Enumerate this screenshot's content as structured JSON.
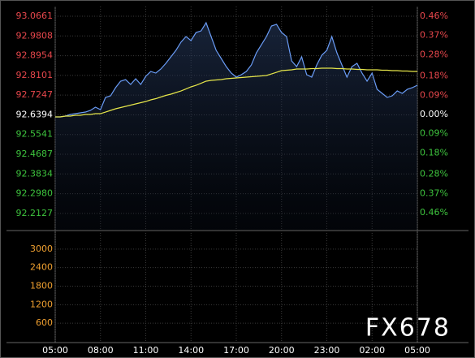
{
  "chart_data": [
    {
      "type": "line",
      "x": [
        "05:00",
        "05:20",
        "05:40",
        "06:00",
        "06:20",
        "06:40",
        "07:00",
        "07:20",
        "07:40",
        "08:00",
        "08:20",
        "08:40",
        "09:00",
        "09:20",
        "09:40",
        "10:00",
        "10:20",
        "10:40",
        "11:00",
        "11:20",
        "11:40",
        "12:00",
        "12:20",
        "12:40",
        "13:00",
        "13:20",
        "13:40",
        "14:00",
        "14:20",
        "14:40",
        "15:00",
        "15:20",
        "15:40",
        "16:00",
        "16:20",
        "16:40",
        "17:00",
        "17:20",
        "17:40",
        "18:00",
        "18:20",
        "18:40",
        "19:00",
        "19:20",
        "19:40",
        "20:00",
        "20:20",
        "20:40",
        "21:00",
        "21:20",
        "21:40",
        "22:00",
        "22:20",
        "22:40",
        "23:00",
        "23:20",
        "23:40",
        "00:00",
        "00:20",
        "00:40",
        "01:00",
        "01:20",
        "01:40",
        "02:00",
        "02:20",
        "02:40",
        "03:00",
        "03:20",
        "03:40",
        "04:00",
        "04:20",
        "04:40",
        "05:00"
      ],
      "series": [
        {
          "color": "#6a9cf6",
          "fill": true,
          "values": [
            92.6304,
            92.6304,
            92.6339,
            92.6409,
            92.6444,
            92.6479,
            92.6514,
            92.6585,
            92.6725,
            92.662,
            92.7147,
            92.7217,
            92.7569,
            92.785,
            92.792,
            92.7709,
            92.7955,
            92.7709,
            92.8061,
            92.8271,
            92.8201,
            92.8377,
            92.8623,
            92.8904,
            92.9185,
            92.9537,
            92.9782,
            92.9607,
            92.9958,
            93.0028,
            93.038,
            92.9782,
            92.9185,
            92.8834,
            92.8482,
            92.8201,
            92.8025,
            92.8131,
            92.8271,
            92.8553,
            92.908,
            92.9431,
            92.9782,
            93.0239,
            93.031,
            92.9958,
            92.9782,
            92.8728,
            92.8482,
            92.8904,
            92.8131,
            92.8025,
            92.8553,
            92.8974,
            92.9185,
            92.9782,
            92.908,
            92.8553,
            92.8025,
            92.8482,
            92.8623,
            92.8201,
            92.785,
            92.8201,
            92.7498,
            92.7323,
            92.7147,
            92.7217,
            92.7428,
            92.7323,
            92.7498,
            92.7569,
            92.7674
          ]
        },
        {
          "color": "#e6e64a",
          "fill": false,
          "values": [
            92.6304,
            92.6304,
            92.6339,
            92.6339,
            92.6374,
            92.6374,
            92.6409,
            92.6409,
            92.6444,
            92.6444,
            92.6514,
            92.6585,
            92.6655,
            92.6708,
            92.676,
            92.6813,
            92.6866,
            92.6919,
            92.6971,
            92.7042,
            92.7094,
            92.7165,
            92.7235,
            92.7288,
            92.7358,
            92.7428,
            92.7516,
            92.7604,
            92.7674,
            92.7762,
            92.785,
            92.7885,
            92.7903,
            92.792,
            92.7955,
            92.7973,
            92.799,
            92.8008,
            92.8025,
            92.8043,
            92.8061,
            92.8078,
            92.8096,
            92.8166,
            92.8236,
            92.8307,
            92.8324,
            92.8342,
            92.8377,
            92.8377,
            92.8377,
            92.8394,
            92.8394,
            92.8412,
            92.8412,
            92.8412,
            92.8394,
            92.8394,
            92.8377,
            92.8377,
            92.8359,
            92.8359,
            92.8342,
            92.8342,
            92.8342,
            92.8324,
            92.8324,
            92.8307,
            92.8307,
            92.8289,
            92.8289,
            92.8271,
            92.8271
          ]
        }
      ],
      "ylim": [
        92.142,
        93.0661
      ],
      "yticks": [
        93.0661,
        92.9808,
        92.8954,
        92.8101,
        92.7247,
        92.6394,
        92.5541,
        92.4687,
        92.3834,
        {
          "value": 92.298,
          "label": "92.2980"
        },
        92.2127
      ],
      "y2lim": [
        -0.54,
        0.46
      ],
      "y2ticks": [
        {
          "value": 0.46,
          "label": "0.46%"
        },
        {
          "value": 0.37,
          "label": "0.37%"
        },
        {
          "value": 0.28,
          "label": "0.28%"
        },
        {
          "value": 0.18,
          "label": "0.18%"
        },
        {
          "value": 0.09,
          "label": "0.09%"
        },
        {
          "value": 0,
          "label": "0.00%"
        },
        {
          "value": -0.09,
          "label": "0.09%"
        },
        {
          "value": -0.18,
          "label": "0.18%"
        },
        {
          "value": -0.28,
          "label": "0.28%"
        },
        {
          "value": -0.37,
          "label": "0.37%"
        },
        {
          "value": -0.46,
          "label": "0.46%"
        }
      ],
      "xticks": [
        "05:00",
        "08:00",
        "11:00",
        "14:00",
        "17:00",
        "20:00",
        "23:00",
        "02:00",
        "05:00"
      ],
      "up_color": "#e8474c",
      "down_color": "#3ec43e",
      "flat_color": "#ffffff",
      "grid": true
    },
    {
      "type": "bar",
      "ylim": [
        0,
        3600
      ],
      "yticks": [
        600,
        1200,
        1800,
        2400,
        3000
      ],
      "tick_color": "#f0a030",
      "grid": true
    }
  ],
  "watermark": "FX678"
}
